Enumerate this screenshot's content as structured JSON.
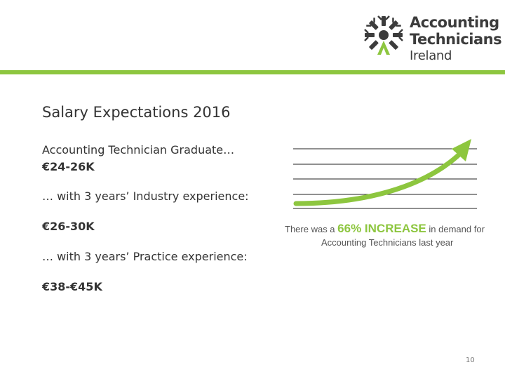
{
  "logo": {
    "line1": "Accounting",
    "line2": "Technicians",
    "line3": "Ireland",
    "icon": "snowflake-emblem-icon",
    "color_dark": "#3c3c3c",
    "color_green": "#8dc63f"
  },
  "accent_bar_color": "#8dc63f",
  "slide": {
    "title": "Salary Expectations 2016",
    "items": [
      {
        "label": "Accounting Technician Graduate…",
        "value": "€24-26K"
      },
      {
        "label": "… with 3 years’ Industry experience:",
        "value": "€26-30K"
      },
      {
        "label": "… with 3 years’ Practice experience:",
        "value": "€38-€45K"
      }
    ]
  },
  "graphic": {
    "icon": "rising-arrow-icon",
    "caption_prefix": "There was a",
    "caption_highlight": "66% INCREASE",
    "caption_suffix": "in demand for",
    "caption_line2": "Accounting Technicians last year"
  },
  "page_number": "10"
}
